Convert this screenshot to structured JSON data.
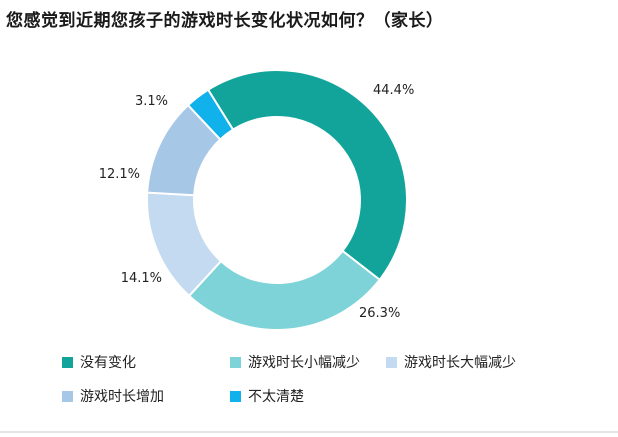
{
  "chart_data": {
    "type": "pie",
    "title": "您感觉到近期您孩子的游戏时长变化状况如何？（家长）",
    "categories": [
      "没有变化",
      "游戏时长小幅减少",
      "游戏时长大幅减少",
      "游戏时长增加",
      "不太清楚"
    ],
    "values": [
      44.4,
      26.3,
      14.1,
      12.1,
      3.1
    ],
    "value_labels": [
      "44.4%",
      "26.3%",
      "14.1%",
      "12.1%",
      "3.1%"
    ],
    "colors": [
      "#12a49b",
      "#7dd3d8",
      "#c3daf0",
      "#a7c7e7",
      "#11b1eb"
    ],
    "donut": true,
    "legend_position": "bottom"
  }
}
